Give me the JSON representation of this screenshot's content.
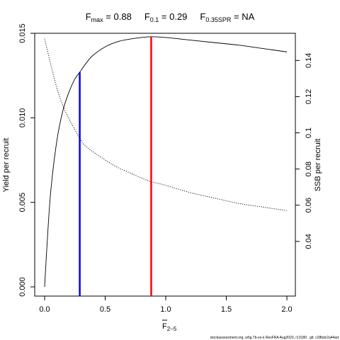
{
  "chart_data": {
    "type": "line",
    "title": {
      "fmax_label": "F",
      "fmax_sub": "max",
      "fmax_value": " = 0.88",
      "f01_label": "F",
      "f01_sub": "0.1",
      "f01_value": " = 0.29",
      "fspr_label": "F",
      "fspr_sub": "0.35SPR",
      "fspr_value": " = NA"
    },
    "xlabel": {
      "main": "F",
      "sub": "2−5",
      "overbar": true
    },
    "ylabel": "Yield per recruit",
    "y2label": "SSB per recruit",
    "xlim": [
      0,
      2.0
    ],
    "ylim": [
      0,
      0.015
    ],
    "y2lim": [
      0,
      0.155
    ],
    "x_ticks": [
      "0.0",
      "0.5",
      "1.0",
      "1.5",
      "2.0"
    ],
    "y_ticks": [
      "0.000",
      "0.005",
      "0.010",
      "0.015"
    ],
    "y2_ticks": [
      "0.04",
      "0.06",
      "0.08",
      "0.1",
      "0.12",
      "0.14"
    ],
    "grid": false,
    "series": [
      {
        "axis": "left",
        "style": "solid",
        "color": "#000000",
        "x": [
          0,
          0.02,
          0.05,
          0.1,
          0.15,
          0.2,
          0.25,
          0.29,
          0.35,
          0.4,
          0.5,
          0.6,
          0.7,
          0.8,
          0.88,
          1.0,
          1.2,
          1.4,
          1.6,
          1.8,
          2.0
        ],
        "y": [
          0.0,
          0.0025,
          0.0056,
          0.0086,
          0.0104,
          0.0115,
          0.0123,
          0.0127,
          0.0133,
          0.0137,
          0.0142,
          0.0145,
          0.01465,
          0.01475,
          0.0148,
          0.01475,
          0.0146,
          0.01445,
          0.0143,
          0.0141,
          0.0139
        ]
      },
      {
        "axis": "right",
        "style": "dotted",
        "color": "#000000",
        "x": [
          0,
          0.05,
          0.1,
          0.15,
          0.2,
          0.29,
          0.35,
          0.5,
          0.6,
          0.7,
          0.8,
          0.88,
          1.0,
          1.2,
          1.4,
          1.6,
          1.8,
          2.0
        ],
        "y": [
          0.152,
          0.138,
          0.125,
          0.115,
          0.108,
          0.097,
          0.092,
          0.085,
          0.081,
          0.078,
          0.075,
          0.073,
          0.071,
          0.067,
          0.064,
          0.061,
          0.059,
          0.057
        ]
      }
    ],
    "reference_lines": [
      {
        "name": "F0.1",
        "x": 0.29,
        "y_top": 0.0127,
        "color": "#0000ff"
      },
      {
        "name": "Fmax",
        "x": 0.88,
        "y_top": 0.0148,
        "color": "#ff0000"
      }
    ]
  },
  "footer": "stockassessment.org, whg.7b-ce-k  RevFRA  Aug2020, r13189 ,  git: c28bdc2a44ad"
}
